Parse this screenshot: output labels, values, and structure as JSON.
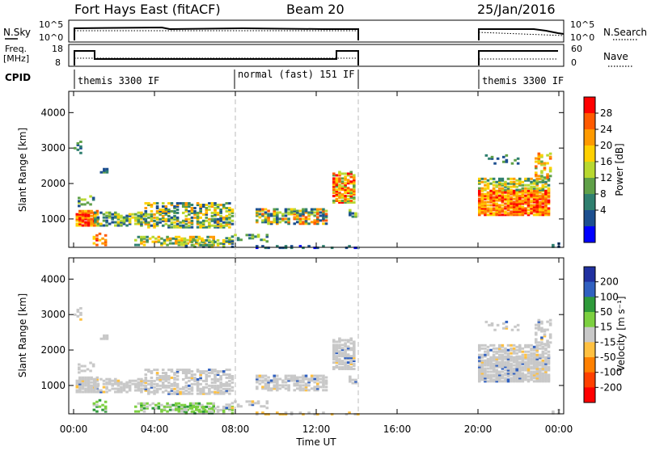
{
  "header": {
    "station": "Fort Hays East (fitACF)",
    "beam": "Beam 20",
    "date": "25/Jan/2016"
  },
  "status_panels": {
    "nsky": {
      "left_label": "N.Sky",
      "left_ticks": [
        "10^5",
        "10^0"
      ],
      "right_label": "N.Search",
      "right_ticks": [
        "10^5",
        "10^0"
      ]
    },
    "freq": {
      "left_label_1": "Freq.",
      "left_label_2": "[MHz]",
      "left_ticks": [
        "18",
        "8"
      ],
      "right_label": "Nave",
      "right_ticks": [
        "60",
        "0"
      ]
    },
    "cpid": {
      "label": "CPID",
      "segments": [
        {
          "start_hour": 0.5,
          "text": "themis 3300 IF"
        },
        {
          "start_hour": 8.0,
          "text": "normal (fast) 151 IF"
        },
        {
          "start_hour": 20.0,
          "text": "themis 3300 IF"
        }
      ]
    }
  },
  "chart_data": [
    {
      "type": "heatmap",
      "name": "power",
      "ylabel": "Slant Range [km]",
      "yticks": [
        "4000",
        "3000",
        "2000",
        "1000"
      ],
      "y_tick_values": [
        4000,
        3000,
        2000,
        1000
      ],
      "ylim": [
        200,
        4600
      ],
      "colorbar": {
        "label": "Power [dB]",
        "ticks": [
          "28",
          "24",
          "20",
          "16",
          "12",
          "8",
          "4"
        ],
        "colors": [
          "#ff0000",
          "#ff5a00",
          "#ff9a00",
          "#ffd000",
          "#b8d830",
          "#5fa048",
          "#2f7f6f",
          "#1c4f8f",
          "#0000ff"
        ]
      }
    },
    {
      "type": "heatmap",
      "name": "velocity",
      "ylabel": "Slant Range [km]",
      "yticks": [
        "4000",
        "3000",
        "2000",
        "1000"
      ],
      "y_tick_values": [
        4000,
        3000,
        2000,
        1000
      ],
      "ylim": [
        200,
        4600
      ],
      "xlabel": "Time UT",
      "xticks": [
        "00:00",
        "04:00",
        "08:00",
        "12:00",
        "16:00",
        "20:00",
        "00:00"
      ],
      "x_tick_hours": [
        0,
        4,
        8,
        12,
        16,
        20,
        24
      ],
      "colorbar": {
        "label": "Velocity [m s⁻¹]",
        "ticks": [
          "200",
          "100",
          "50",
          "15",
          "-15",
          "-50",
          "-100",
          "-200"
        ],
        "colors": [
          "#2030a0",
          "#3060c0",
          "#2e9a3a",
          "#7cd040",
          "#c8c8c8",
          "#ffc040",
          "#ff8000",
          "#ff4000",
          "#ff0000"
        ]
      }
    }
  ]
}
